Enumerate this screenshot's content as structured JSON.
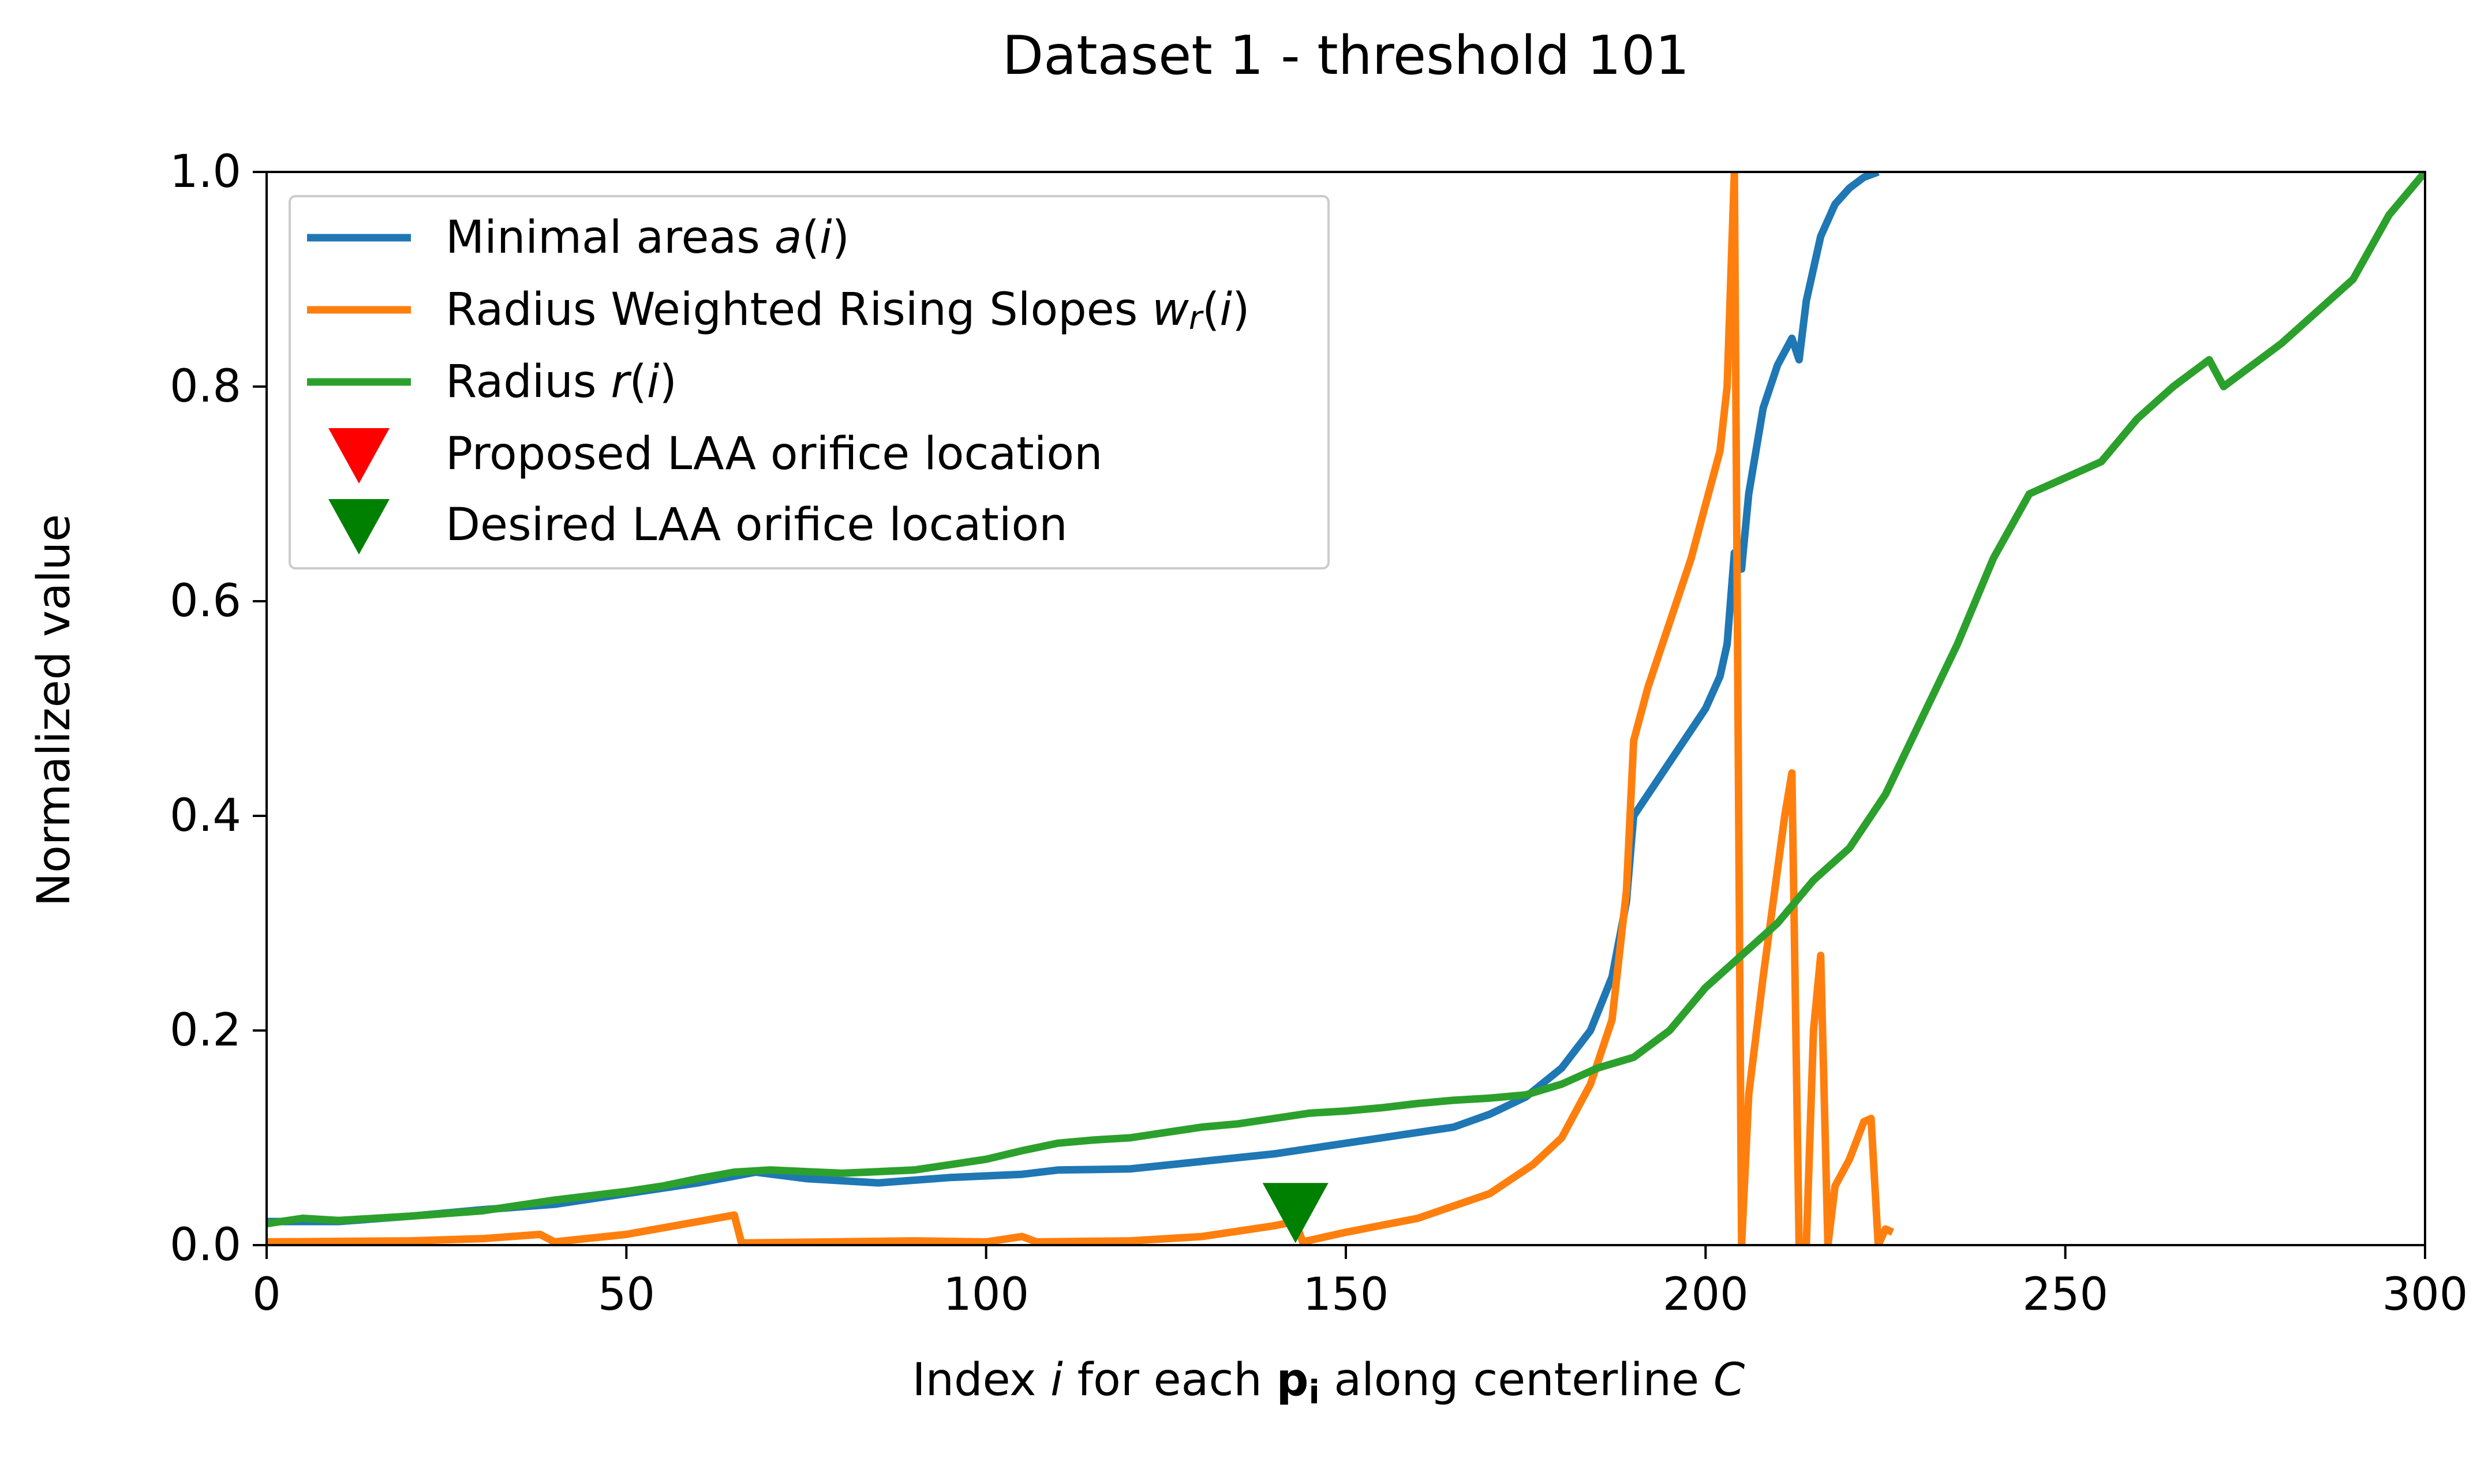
{
  "chart_data": {
    "type": "line",
    "title": "Dataset 1 - threshold 101",
    "xlabel": "Index i for each p_i along centerline C",
    "ylabel": "Normalized value",
    "xlim": [
      0,
      300
    ],
    "ylim": [
      0.0,
      1.0
    ],
    "xticks": [
      0,
      50,
      100,
      150,
      200,
      250,
      300
    ],
    "xtick_labels": [
      "0",
      "50",
      "100",
      "150",
      "200",
      "250",
      "300"
    ],
    "yticks": [
      0.0,
      0.2,
      0.4,
      0.6,
      0.8,
      1.0
    ],
    "ytick_labels": [
      "0.0",
      "0.2",
      "0.4",
      "0.6",
      "0.8",
      "1.0"
    ],
    "grid": false,
    "legend_position": "upper-left",
    "series": [
      {
        "name": "Minimal areas a(i)",
        "color": "#1f77b4",
        "points": [
          [
            0,
            0.022
          ],
          [
            10,
            0.022
          ],
          [
            20,
            0.027
          ],
          [
            30,
            0.033
          ],
          [
            40,
            0.038
          ],
          [
            50,
            0.048
          ],
          [
            60,
            0.058
          ],
          [
            68,
            0.068
          ],
          [
            75,
            0.062
          ],
          [
            85,
            0.058
          ],
          [
            95,
            0.063
          ],
          [
            105,
            0.066
          ],
          [
            110,
            0.07
          ],
          [
            120,
            0.071
          ],
          [
            130,
            0.078
          ],
          [
            140,
            0.085
          ],
          [
            150,
            0.095
          ],
          [
            160,
            0.105
          ],
          [
            165,
            0.11
          ],
          [
            170,
            0.122
          ],
          [
            175,
            0.138
          ],
          [
            180,
            0.165
          ],
          [
            184,
            0.2
          ],
          [
            187,
            0.25
          ],
          [
            189,
            0.32
          ],
          [
            190,
            0.4
          ],
          [
            193,
            0.43
          ],
          [
            195,
            0.45
          ],
          [
            198,
            0.48
          ],
          [
            200,
            0.5
          ],
          [
            202,
            0.53
          ],
          [
            203,
            0.56
          ],
          [
            204,
            0.645
          ],
          [
            205,
            0.63
          ],
          [
            206,
            0.7
          ],
          [
            208,
            0.78
          ],
          [
            210,
            0.82
          ],
          [
            212,
            0.845
          ],
          [
            213,
            0.825
          ],
          [
            214,
            0.88
          ],
          [
            216,
            0.94
          ],
          [
            218,
            0.97
          ],
          [
            220,
            0.985
          ],
          [
            222,
            0.995
          ],
          [
            224,
            1.0
          ]
        ]
      },
      {
        "name": "Radius Weighted Rising Slopes w_r(i)",
        "color": "#ff7f0e",
        "points": [
          [
            0,
            0.003
          ],
          [
            20,
            0.004
          ],
          [
            30,
            0.006
          ],
          [
            38,
            0.01
          ],
          [
            40,
            0.003
          ],
          [
            50,
            0.01
          ],
          [
            60,
            0.022
          ],
          [
            65,
            0.028
          ],
          [
            66,
            0.002
          ],
          [
            90,
            0.004
          ],
          [
            100,
            0.003
          ],
          [
            105,
            0.008
          ],
          [
            107,
            0.003
          ],
          [
            120,
            0.004
          ],
          [
            130,
            0.008
          ],
          [
            140,
            0.018
          ],
          [
            143,
            0.022
          ],
          [
            144,
            0.003
          ],
          [
            150,
            0.012
          ],
          [
            160,
            0.025
          ],
          [
            170,
            0.048
          ],
          [
            176,
            0.075
          ],
          [
            180,
            0.1
          ],
          [
            184,
            0.15
          ],
          [
            187,
            0.21
          ],
          [
            189,
            0.33
          ],
          [
            190,
            0.47
          ],
          [
            192,
            0.52
          ],
          [
            194,
            0.56
          ],
          [
            196,
            0.6
          ],
          [
            198,
            0.64
          ],
          [
            200,
            0.69
          ],
          [
            202,
            0.74
          ],
          [
            203,
            0.8
          ],
          [
            204,
            1.0
          ],
          [
            205,
            0.0
          ],
          [
            206,
            0.14
          ],
          [
            208,
            0.25
          ],
          [
            210,
            0.35
          ],
          [
            211,
            0.4
          ],
          [
            212,
            0.44
          ],
          [
            213,
            0.0
          ],
          [
            214,
            0.0
          ],
          [
            215,
            0.2
          ],
          [
            216,
            0.27
          ],
          [
            217,
            0.0
          ],
          [
            218,
            0.055
          ],
          [
            220,
            0.08
          ],
          [
            222,
            0.115
          ],
          [
            223,
            0.118
          ],
          [
            224,
            0.0
          ],
          [
            225,
            0.015
          ],
          [
            226,
            0.012
          ]
        ]
      },
      {
        "name": "Radius r(i)",
        "color": "#2ca02c",
        "points": [
          [
            0,
            0.02
          ],
          [
            5,
            0.025
          ],
          [
            10,
            0.023
          ],
          [
            20,
            0.027
          ],
          [
            30,
            0.032
          ],
          [
            40,
            0.042
          ],
          [
            50,
            0.05
          ],
          [
            55,
            0.055
          ],
          [
            60,
            0.062
          ],
          [
            65,
            0.068
          ],
          [
            70,
            0.07
          ],
          [
            80,
            0.067
          ],
          [
            90,
            0.07
          ],
          [
            95,
            0.075
          ],
          [
            100,
            0.08
          ],
          [
            105,
            0.088
          ],
          [
            110,
            0.095
          ],
          [
            115,
            0.098
          ],
          [
            120,
            0.1
          ],
          [
            125,
            0.105
          ],
          [
            130,
            0.11
          ],
          [
            135,
            0.113
          ],
          [
            140,
            0.118
          ],
          [
            145,
            0.123
          ],
          [
            150,
            0.125
          ],
          [
            155,
            0.128
          ],
          [
            160,
            0.132
          ],
          [
            165,
            0.135
          ],
          [
            170,
            0.137
          ],
          [
            175,
            0.14
          ],
          [
            180,
            0.15
          ],
          [
            185,
            0.165
          ],
          [
            190,
            0.175
          ],
          [
            195,
            0.2
          ],
          [
            200,
            0.24
          ],
          [
            205,
            0.27
          ],
          [
            210,
            0.3
          ],
          [
            215,
            0.34
          ],
          [
            220,
            0.37
          ],
          [
            225,
            0.42
          ],
          [
            230,
            0.49
          ],
          [
            235,
            0.56
          ],
          [
            240,
            0.64
          ],
          [
            245,
            0.7
          ],
          [
            250,
            0.715
          ],
          [
            255,
            0.73
          ],
          [
            260,
            0.77
          ],
          [
            265,
            0.8
          ],
          [
            270,
            0.825
          ],
          [
            272,
            0.8
          ],
          [
            275,
            0.815
          ],
          [
            280,
            0.84
          ],
          [
            285,
            0.87
          ],
          [
            290,
            0.9
          ],
          [
            295,
            0.96
          ],
          [
            300,
            1.0
          ]
        ]
      }
    ],
    "markers": [
      {
        "name": "Proposed LAA orifice location",
        "color": "#ff0000",
        "x": 143,
        "y": 0.03,
        "visible_on_plot": false
      },
      {
        "name": "Desired LAA orifice location",
        "color": "#008000",
        "x": 143,
        "y": 0.03,
        "visible_on_plot": true
      }
    ]
  },
  "legend": {
    "items": [
      {
        "label": "Minimal areas a(i)",
        "color": "#1f77b4",
        "kind": "line"
      },
      {
        "label": "Radius Weighted Rising Slopes w_r(i)",
        "color": "#ff7f0e",
        "kind": "line"
      },
      {
        "label": "Radius r(i)",
        "color": "#2ca02c",
        "kind": "line"
      },
      {
        "label": "Proposed LAA orifice location",
        "color": "#ff0000",
        "kind": "triangle-down"
      },
      {
        "label": "Desired LAA orifice location",
        "color": "#008000",
        "kind": "triangle-down"
      }
    ]
  }
}
